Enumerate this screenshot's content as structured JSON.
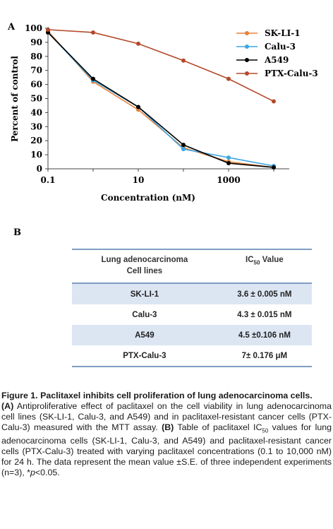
{
  "chart_data": {
    "type": "line",
    "panel_label": "A",
    "xlabel": "Concentration (nM)",
    "ylabel": "Percent of control",
    "x_scale": "log",
    "xlim": [
      0.1,
      10000
    ],
    "ylim": [
      0,
      100
    ],
    "x_ticks": [
      "0.1",
      "10",
      "1000"
    ],
    "y_ticks": [
      "0",
      "10",
      "20",
      "30",
      "40",
      "50",
      "60",
      "70",
      "80",
      "90",
      "100"
    ],
    "x": [
      0.1,
      1,
      10,
      100,
      1000,
      10000
    ],
    "series": [
      {
        "name": "SK-LI-1",
        "color": "#e8823a",
        "values": [
          98,
          62,
          42,
          15,
          5,
          1
        ]
      },
      {
        "name": "Calu-3",
        "color": "#3ea6e2",
        "values": [
          97,
          63,
          44,
          14,
          8,
          2
        ]
      },
      {
        "name": "A549",
        "color": "#000000",
        "values": [
          97,
          64,
          44,
          17,
          4,
          1
        ]
      },
      {
        "name": "PTX-Calu-3",
        "color": "#b5492b",
        "values": [
          99,
          97,
          89,
          77,
          64,
          48
        ]
      }
    ],
    "legend_position": "top-right",
    "grid": false
  },
  "table": {
    "panel_label": "B",
    "headers": {
      "col1_line1": "Lung adenocarcinoma",
      "col1_line2": "Cell lines",
      "col2_main": "IC",
      "col2_sub": "50",
      "col2_rest": " Value"
    },
    "rows": [
      {
        "cell_line": "SK-LI-1",
        "value": "3.6 ± 0.005 nM"
      },
      {
        "cell_line": "Calu-3",
        "value": "4.3 ± 0.015 nM"
      },
      {
        "cell_line": "A549",
        "value": "4.5 ±0.106 nM"
      },
      {
        "cell_line": "PTX-Calu-3",
        "value": "7± 0.176 μM"
      }
    ]
  },
  "caption": {
    "title": "Figure 1. Paclitaxel inhibits cell proliferation of lung adenocarcinoma cells.",
    "a_label": "(A)",
    "a_text": " Antiproliferative effect of paclitaxel on the cell viability in lung adenocarcinoma cell lines (SK-LI-1, Calu-3, and A549) and in paclitaxel-resistant cancer cells (PTX-Calu-3) measured with the MTT assay. ",
    "b_label": "(B)",
    "b_text_1": " Table of paclitaxel IC",
    "b_sub": "50",
    "b_text_2": " values for lung adenocarcinoma cells (SK-LI-1, Calu-3, and A549) and paclitaxel-resistant cancer cells (PTX-Calu-3) treated with varying paclitaxel concentrations (0.1 to 10,000 nM) for 24 h. The data represent the mean value ±S.E. of three independent experiments (n=3), *",
    "p_italic": "p",
    "b_text_3": "<0.05."
  }
}
